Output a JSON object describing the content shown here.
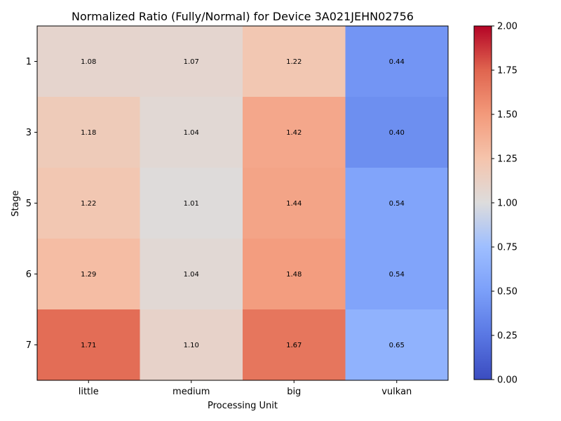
{
  "chart_data": {
    "type": "heatmap",
    "title": "Normalized Ratio (Fully/Normal) for Device 3A021JEHN02756",
    "xlabel": "Processing Unit",
    "ylabel": "Stage",
    "x_categories": [
      "little",
      "medium",
      "big",
      "vulkan"
    ],
    "y_categories": [
      "1",
      "3",
      "5",
      "6",
      "7"
    ],
    "values": [
      [
        1.08,
        1.07,
        1.22,
        0.44
      ],
      [
        1.18,
        1.04,
        1.42,
        0.4
      ],
      [
        1.22,
        1.01,
        1.44,
        0.54
      ],
      [
        1.29,
        1.04,
        1.48,
        0.54
      ],
      [
        1.71,
        1.1,
        1.67,
        0.65
      ]
    ],
    "value_labels": [
      [
        "1.08",
        "1.07",
        "1.22",
        "0.44"
      ],
      [
        "1.18",
        "1.04",
        "1.42",
        "0.40"
      ],
      [
        "1.22",
        "1.01",
        "1.44",
        "0.54"
      ],
      [
        "1.29",
        "1.04",
        "1.48",
        "0.54"
      ],
      [
        "1.71",
        "1.10",
        "1.67",
        "0.65"
      ]
    ],
    "colormap": "coolwarm",
    "vmin": 0.0,
    "vmax": 2.0,
    "colorbar_ticks": [
      "0.00",
      "0.25",
      "0.50",
      "0.75",
      "1.00",
      "1.25",
      "1.50",
      "1.75",
      "2.00"
    ]
  }
}
